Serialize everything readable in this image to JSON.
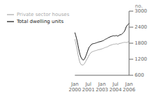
{
  "chart_data": {
    "type": "line",
    "title": "",
    "y_label": "no.",
    "categories": [
      "Jan\n2000",
      null,
      null,
      null,
      null,
      null,
      null,
      null,
      null,
      null,
      null,
      null,
      null,
      null,
      null,
      null,
      null,
      null,
      "Jul\n2001",
      null,
      null,
      null,
      null,
      null,
      null,
      null,
      null,
      null,
      null,
      null,
      null,
      null,
      null,
      null,
      null,
      null,
      "Jan\n2003",
      null,
      null,
      null,
      null,
      null,
      null,
      null,
      null,
      null,
      null,
      null,
      null,
      null,
      null,
      null,
      null,
      null,
      "Jul\n2004",
      null,
      null,
      null,
      null,
      null,
      null,
      null,
      null,
      null,
      null,
      null,
      null,
      null,
      null,
      null,
      null,
      null,
      "Jan\n2006"
    ],
    "series": [
      {
        "name": "Total dwelling units",
        "color": "#1a1a1a",
        "values": [
          2200,
          2100,
          2000,
          1880,
          1740,
          1600,
          1470,
          1360,
          1280,
          1230,
          1190,
          1170,
          1180,
          1220,
          1280,
          1350,
          1430,
          1510,
          1590,
          1650,
          1690,
          1720,
          1750,
          1770,
          1780,
          1785,
          1790,
          1800,
          1810,
          1820,
          1830,
          1840,
          1850,
          1855,
          1860,
          1870,
          1880,
          1890,
          1900,
          1920,
          1940,
          1955,
          1965,
          1980,
          2000,
          2015,
          2025,
          2040,
          2050,
          2060,
          2070,
          2075,
          2080,
          2070,
          2080,
          2090,
          2075,
          2065,
          2080,
          2100,
          2120,
          2115,
          2130,
          2160,
          2185,
          2210,
          2250,
          2320,
          2400,
          2450,
          2480,
          2510,
          2550
        ]
      },
      {
        "name": "Private sector houses",
        "color": "#aaaaaa",
        "values": [
          1950,
          1830,
          1700,
          1560,
          1400,
          1270,
          1140,
          1060,
          1010,
          990,
          985,
          990,
          1010,
          1050,
          1100,
          1150,
          1200,
          1250,
          1300,
          1360,
          1400,
          1435,
          1460,
          1480,
          1490,
          1500,
          1510,
          1518,
          1525,
          1535,
          1545,
          1555,
          1560,
          1565,
          1570,
          1580,
          1590,
          1600,
          1610,
          1625,
          1635,
          1645,
          1655,
          1665,
          1675,
          1695,
          1710,
          1720,
          1730,
          1740,
          1750,
          1758,
          1765,
          1762,
          1770,
          1778,
          1770,
          1762,
          1770,
          1785,
          1795,
          1795,
          1805,
          1820,
          1820,
          1830,
          1830,
          1835,
          1825,
          1830,
          1840,
          1850,
          1860
        ]
      }
    ],
    "ylim": [
      600,
      3000
    ],
    "yticks": [
      600,
      1200,
      1800,
      2400,
      3000
    ],
    "grid": false,
    "legend": "upper left"
  }
}
